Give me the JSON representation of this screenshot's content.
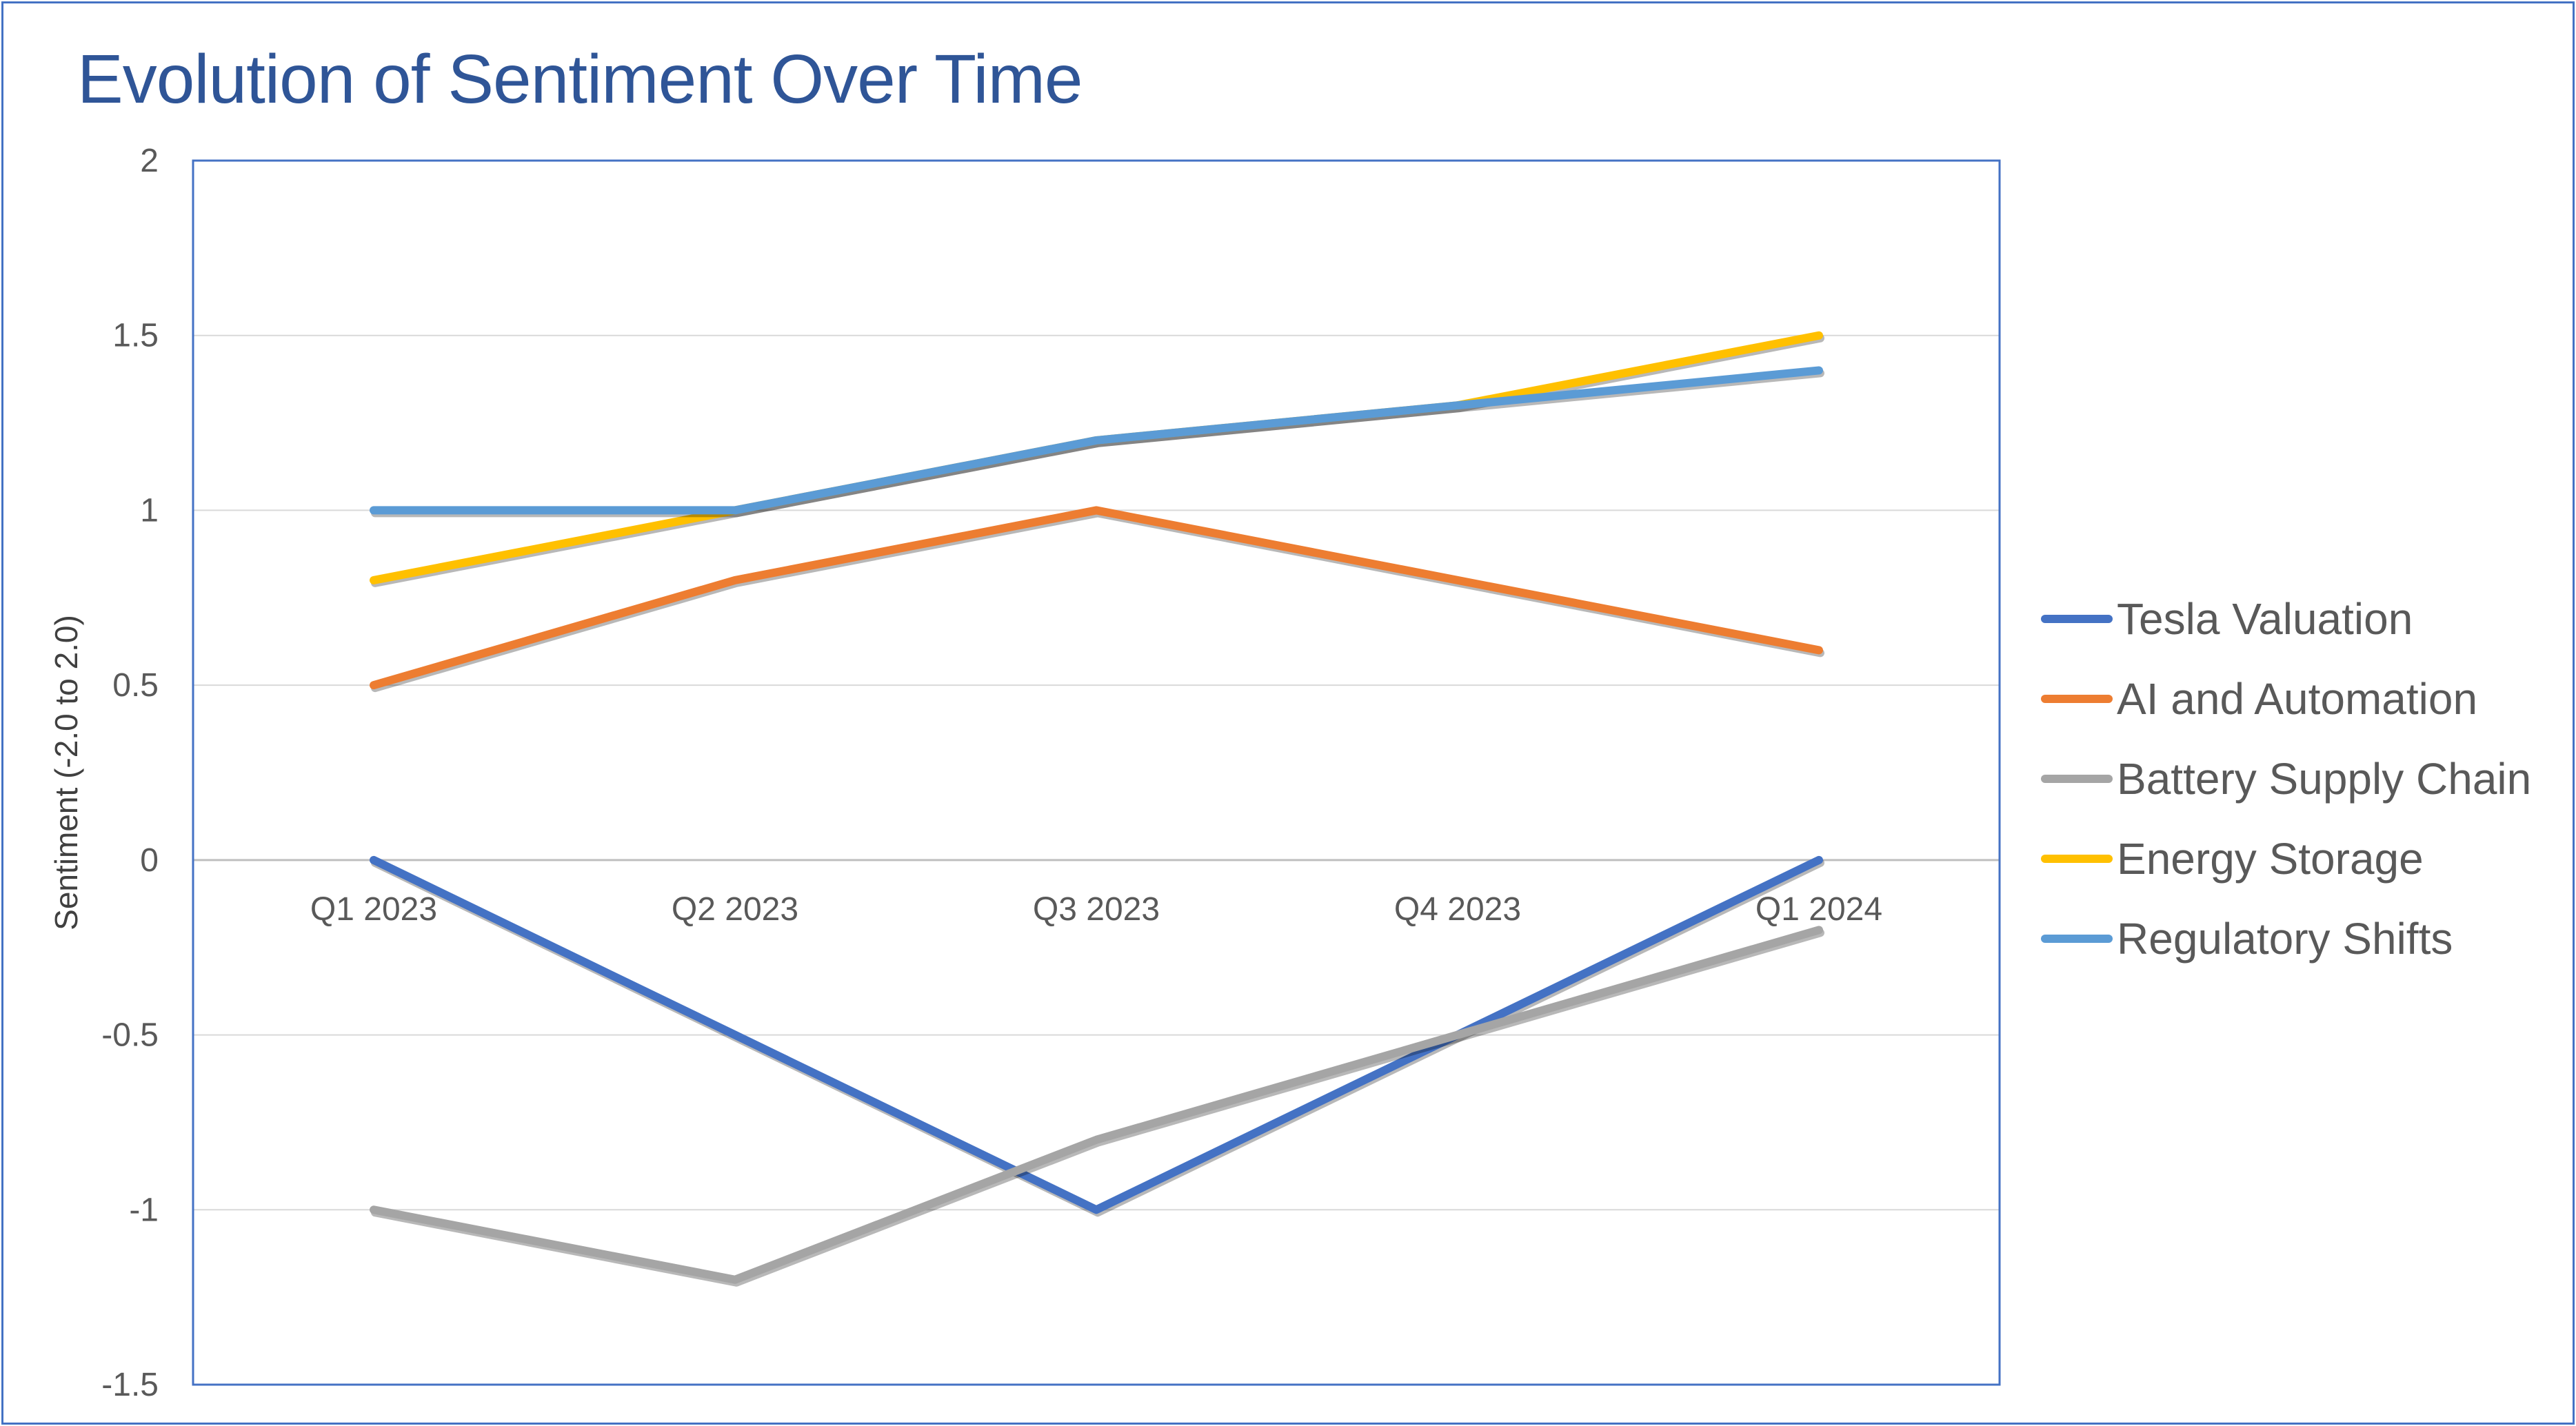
{
  "chart_data": {
    "type": "line",
    "title": "Evolution of Sentiment Over Time",
    "xlabel": "",
    "ylabel": "Sentiment (-2.0 to 2.0)",
    "categories": [
      "Q1 2023",
      "Q2 2023",
      "Q3 2023",
      "Q4 2023",
      "Q1 2024"
    ],
    "ylim": [
      -1.5,
      2
    ],
    "yticks": [
      2,
      1.5,
      1,
      0.5,
      0,
      -0.5,
      -1,
      -1.5
    ],
    "grid": true,
    "legend_position": "right",
    "series": [
      {
        "name": "Tesla Valuation",
        "color": "#4472c4",
        "values": [
          0,
          -0.5,
          -1,
          -0.5,
          0
        ]
      },
      {
        "name": "AI and Automation",
        "color": "#ed7d31",
        "values": [
          0.5,
          0.8,
          1.0,
          0.8,
          0.6
        ]
      },
      {
        "name": "Battery Supply Chain",
        "color": "#a5a5a5",
        "values": [
          -1,
          -1.2,
          -0.8,
          -0.5,
          -0.2
        ]
      },
      {
        "name": "Energy Storage",
        "color": "#ffc000",
        "values": [
          0.8,
          1.0,
          1.2,
          1.3,
          1.5
        ]
      },
      {
        "name": "Regulatory Shifts",
        "color": "#5b9bd5",
        "values": [
          1.0,
          1.0,
          1.2,
          1.3,
          1.4
        ]
      }
    ]
  }
}
